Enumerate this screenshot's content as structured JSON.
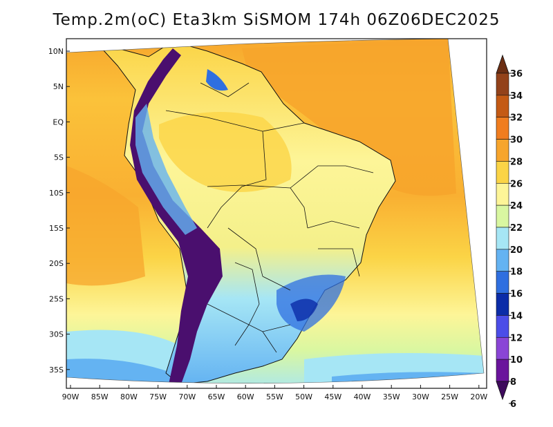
{
  "title": "Temp.2m(oC) Eta3km SiSMOM 174h 06Z06DEC2025",
  "map": {
    "lat_labels": [
      "10N",
      "5N",
      "EQ",
      "5S",
      "10S",
      "15S",
      "20S",
      "25S",
      "30S",
      "35S"
    ],
    "lon_labels": [
      "90W",
      "85W",
      "80W",
      "75W",
      "70W",
      "65W",
      "60W",
      "55W",
      "50W",
      "45W",
      "40W",
      "35W",
      "30W",
      "25W",
      "20W"
    ],
    "lat_range": [
      12,
      -38
    ],
    "lon_range": [
      -91,
      -19
    ]
  },
  "colorbar": {
    "labels": [
      "36",
      "34",
      "32",
      "30",
      "28",
      "26",
      "24",
      "22",
      "20",
      "18",
      "16",
      "14",
      "12",
      "10",
      "8",
      "6"
    ],
    "colors": [
      "#6b2e13",
      "#93421a",
      "#c45a14",
      "#f07d1f",
      "#f7a52c",
      "#fbd446",
      "#fdf598",
      "#d9f7a1",
      "#a6e6f5",
      "#64b3f2",
      "#2f6fe0",
      "#0b2ca8",
      "#4b4de8",
      "#8a45d6",
      "#6a149c",
      "#3e0a5c"
    ]
  },
  "colors": {
    "ocean_north": "#f7a52c",
    "ocean_mid": "#fbd446",
    "ocean_south": "#d9f7a1",
    "land_warm": "#fdf598",
    "andes": "#4a0f6e"
  }
}
